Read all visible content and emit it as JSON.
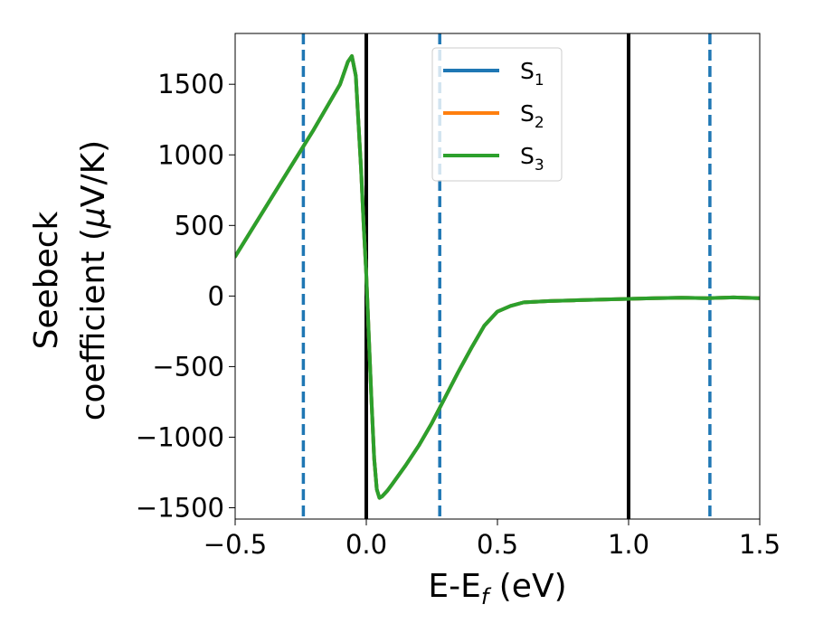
{
  "chart_data": {
    "type": "line",
    "title": "",
    "xlabel": {
      "main": "E-E",
      "sub": "f",
      "unit": " (eV)"
    },
    "ylabel": {
      "line1": "Seebeck",
      "line2_main": "coefficient  (",
      "line2_mu": "μ",
      "line2_unit": "V/K)"
    },
    "xlim": [
      -0.5,
      1.5
    ],
    "ylim": [
      -1580,
      1860
    ],
    "x_ticks": [
      -0.5,
      0.0,
      0.5,
      1.0,
      1.5
    ],
    "x_tick_labels": [
      "−0.5",
      "0.0",
      "0.5",
      "1.0",
      "1.5"
    ],
    "y_ticks": [
      -1500,
      -1000,
      -500,
      0,
      500,
      1000,
      1500
    ],
    "y_tick_labels": [
      "−1500",
      "−1000",
      "−500",
      "0",
      "500",
      "1000",
      "1500"
    ],
    "grid": false,
    "legend_placement": "upper-center",
    "vertical_lines_solid": [
      0.0,
      1.0
    ],
    "vertical_lines_dashed": [
      -0.24,
      0.28,
      1.31
    ],
    "series": [
      {
        "name": {
          "main": "S",
          "sub": "1"
        },
        "color": "#1f77b4",
        "x": [
          -0.5,
          -0.4,
          -0.3,
          -0.2,
          -0.1,
          -0.07,
          -0.055,
          -0.04,
          -0.02,
          -0.01,
          0.0,
          0.01,
          0.02,
          0.03,
          0.04,
          0.05,
          0.06,
          0.08,
          0.1,
          0.15,
          0.2,
          0.25,
          0.3,
          0.35,
          0.4,
          0.45,
          0.5,
          0.55,
          0.6,
          0.7,
          0.8,
          0.9,
          1.0,
          1.1,
          1.2,
          1.3,
          1.4,
          1.5
        ],
        "y": [
          280,
          580,
          880,
          1180,
          1500,
          1660,
          1700,
          1560,
          900,
          500,
          150,
          -300,
          -750,
          -1150,
          -1370,
          -1430,
          -1420,
          -1380,
          -1330,
          -1200,
          -1060,
          -900,
          -720,
          -540,
          -370,
          -210,
          -110,
          -70,
          -45,
          -35,
          -30,
          -25,
          -20,
          -15,
          -12,
          -15,
          -10,
          -15
        ]
      },
      {
        "name": {
          "main": "S",
          "sub": "2"
        },
        "color": "#ff7f0e",
        "x": [
          -0.5,
          -0.4,
          -0.3,
          -0.2,
          -0.1,
          -0.07,
          -0.055,
          -0.04,
          -0.02,
          -0.01,
          0.0,
          0.01,
          0.02,
          0.03,
          0.04,
          0.05,
          0.06,
          0.08,
          0.1,
          0.15,
          0.2,
          0.25,
          0.3,
          0.35,
          0.4,
          0.45,
          0.5,
          0.55,
          0.6,
          0.7,
          0.8,
          0.9,
          1.0,
          1.1,
          1.2,
          1.3,
          1.4,
          1.5
        ],
        "y": [
          280,
          580,
          880,
          1180,
          1500,
          1660,
          1700,
          1560,
          900,
          500,
          150,
          -300,
          -750,
          -1150,
          -1370,
          -1430,
          -1420,
          -1380,
          -1330,
          -1200,
          -1060,
          -900,
          -720,
          -540,
          -370,
          -210,
          -110,
          -70,
          -45,
          -35,
          -30,
          -25,
          -20,
          -15,
          -12,
          -15,
          -10,
          -15
        ]
      },
      {
        "name": {
          "main": "S",
          "sub": "3"
        },
        "color": "#2ca02c",
        "x": [
          -0.5,
          -0.4,
          -0.3,
          -0.2,
          -0.1,
          -0.07,
          -0.055,
          -0.04,
          -0.02,
          -0.01,
          0.0,
          0.01,
          0.02,
          0.03,
          0.04,
          0.05,
          0.06,
          0.08,
          0.1,
          0.15,
          0.2,
          0.25,
          0.3,
          0.35,
          0.4,
          0.45,
          0.5,
          0.55,
          0.6,
          0.7,
          0.8,
          0.9,
          1.0,
          1.1,
          1.2,
          1.3,
          1.4,
          1.5
        ],
        "y": [
          280,
          580,
          880,
          1180,
          1500,
          1660,
          1700,
          1560,
          900,
          500,
          150,
          -300,
          -750,
          -1150,
          -1370,
          -1430,
          -1420,
          -1380,
          -1330,
          -1200,
          -1060,
          -900,
          -720,
          -540,
          -370,
          -210,
          -110,
          -70,
          -45,
          -35,
          -30,
          -25,
          -20,
          -15,
          -12,
          -15,
          -10,
          -15
        ]
      }
    ]
  }
}
